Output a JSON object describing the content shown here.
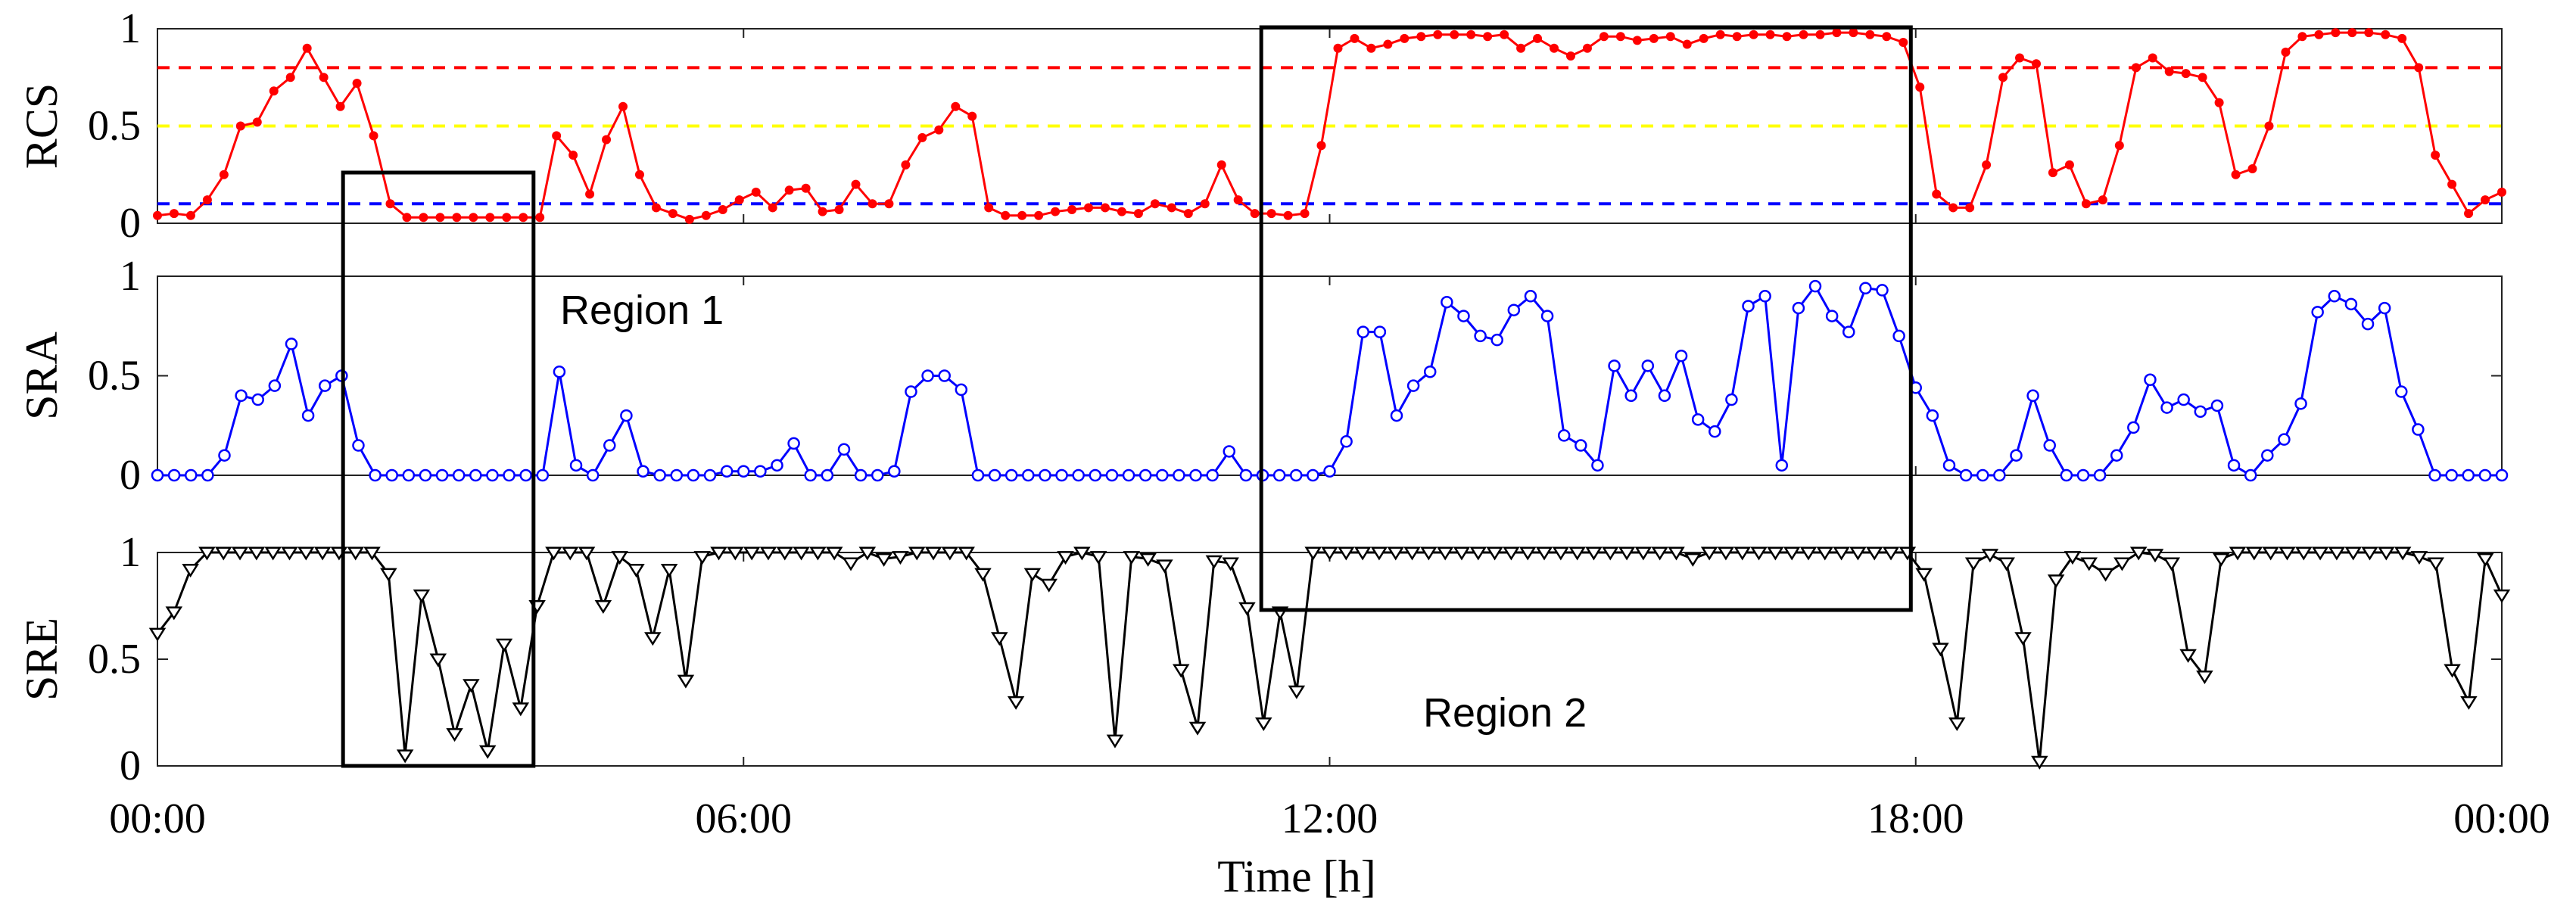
{
  "chart_data": {
    "type": "line",
    "xlabel": "Time [h]",
    "x_tick_labels": [
      "00:00",
      "06:00",
      "12:00",
      "18:00",
      "00:00"
    ],
    "x_range_hours": [
      0,
      24
    ],
    "sample_step_hours": 0.1667,
    "reference_lines": [
      {
        "value": 0.8,
        "color": "#ff0000"
      },
      {
        "value": 0.5,
        "color": "#ffff00"
      },
      {
        "value": 0.1,
        "color": "#0000ff"
      }
    ],
    "regions": [
      {
        "label": "Region 1",
        "x_start_hours": 1.9,
        "x_end_hours": 3.85
      },
      {
        "label": "Region 2",
        "x_start_hours": 11.3,
        "x_end_hours": 17.95
      }
    ],
    "panels": [
      {
        "ylabel": "RCS",
        "ylim": [
          0,
          1
        ],
        "y_ticks": [
          0,
          0.5,
          1
        ],
        "y_tick_labels": [
          "0",
          "0.5",
          "1"
        ],
        "color": "#ff0000",
        "marker": "dot",
        "values": [
          0.04,
          0.05,
          0.04,
          0.12,
          0.25,
          0.5,
          0.52,
          0.68,
          0.75,
          0.9,
          0.75,
          0.6,
          0.72,
          0.45,
          0.1,
          0.03,
          0.03,
          0.03,
          0.03,
          0.03,
          0.03,
          0.03,
          0.03,
          0.03,
          0.45,
          0.35,
          0.15,
          0.43,
          0.6,
          0.25,
          0.08,
          0.05,
          0.02,
          0.04,
          0.07,
          0.12,
          0.16,
          0.08,
          0.17,
          0.18,
          0.06,
          0.07,
          0.2,
          0.1,
          0.1,
          0.3,
          0.44,
          0.48,
          0.6,
          0.55,
          0.08,
          0.04,
          0.04,
          0.04,
          0.06,
          0.07,
          0.08,
          0.08,
          0.06,
          0.05,
          0.1,
          0.08,
          0.05,
          0.1,
          0.3,
          0.12,
          0.05,
          0.05,
          0.04,
          0.05,
          0.4,
          0.9,
          0.95,
          0.9,
          0.92,
          0.95,
          0.96,
          0.97,
          0.97,
          0.97,
          0.96,
          0.97,
          0.9,
          0.95,
          0.9,
          0.86,
          0.9,
          0.96,
          0.96,
          0.94,
          0.95,
          0.96,
          0.92,
          0.95,
          0.97,
          0.96,
          0.97,
          0.97,
          0.96,
          0.97,
          0.97,
          0.98,
          0.98,
          0.97,
          0.96,
          0.93,
          0.7,
          0.15,
          0.08,
          0.08,
          0.3,
          0.75,
          0.85,
          0.82,
          0.26,
          0.3,
          0.1,
          0.12,
          0.4,
          0.8,
          0.85,
          0.78,
          0.77,
          0.75,
          0.62,
          0.25,
          0.28,
          0.5,
          0.88,
          0.96,
          0.97,
          0.98,
          0.98,
          0.98,
          0.97,
          0.95,
          0.8,
          0.35,
          0.2,
          0.05,
          0.12,
          0.16
        ]
      },
      {
        "ylabel": "SRA",
        "ylim": [
          0,
          1
        ],
        "y_ticks": [
          0,
          0.5,
          1
        ],
        "y_tick_labels": [
          "0",
          "0.5",
          "1"
        ],
        "color": "#0000ff",
        "marker": "circle",
        "values": [
          0,
          0,
          0,
          0,
          0.1,
          0.4,
          0.38,
          0.45,
          0.66,
          0.3,
          0.45,
          0.5,
          0.15,
          0,
          0,
          0,
          0,
          0,
          0,
          0,
          0,
          0,
          0,
          0,
          0.52,
          0.05,
          0,
          0.15,
          0.3,
          0.02,
          0,
          0,
          0,
          0,
          0.02,
          0.02,
          0.02,
          0.05,
          0.16,
          0,
          0,
          0.13,
          0,
          0,
          0.02,
          0.42,
          0.5,
          0.5,
          0.43,
          0,
          0,
          0,
          0,
          0,
          0,
          0,
          0,
          0,
          0,
          0,
          0,
          0,
          0,
          0,
          0.12,
          0,
          0,
          0,
          0,
          0,
          0.02,
          0.17,
          0.72,
          0.72,
          0.3,
          0.45,
          0.52,
          0.87,
          0.8,
          0.7,
          0.68,
          0.83,
          0.9,
          0.8,
          0.2,
          0.15,
          0.05,
          0.55,
          0.4,
          0.55,
          0.4,
          0.6,
          0.28,
          0.22,
          0.38,
          0.85,
          0.9,
          0.05,
          0.84,
          0.95,
          0.8,
          0.72,
          0.94,
          0.93,
          0.7,
          0.44,
          0.3,
          0.05,
          0,
          0,
          0,
          0.1,
          0.4,
          0.15,
          0,
          0,
          0,
          0.1,
          0.24,
          0.48,
          0.34,
          0.38,
          0.32,
          0.35,
          0.05,
          0,
          0.1,
          0.18,
          0.36,
          0.82,
          0.9,
          0.86,
          0.76,
          0.84,
          0.42,
          0.23,
          0,
          0,
          0,
          0,
          0
        ]
      },
      {
        "ylabel": "SRE",
        "ylim": [
          0,
          1
        ],
        "y_ticks": [
          0,
          0.5,
          1
        ],
        "y_tick_labels": [
          "0",
          "0.5",
          "1"
        ],
        "color": "#000000",
        "marker": "triangle-down",
        "values": [
          0.62,
          0.72,
          0.92,
          1,
          1,
          1,
          1,
          1,
          1,
          1,
          1,
          1,
          1,
          1,
          0.9,
          0.05,
          0.8,
          0.5,
          0.15,
          0.38,
          0.07,
          0.57,
          0.27,
          0.75,
          1,
          1,
          1,
          0.75,
          0.98,
          0.92,
          0.6,
          0.92,
          0.4,
          0.98,
          1,
          1,
          1,
          1,
          1,
          1,
          1,
          1,
          0.95,
          1,
          0.97,
          0.98,
          1,
          1,
          1,
          1,
          0.9,
          0.6,
          0.3,
          0.9,
          0.85,
          0.98,
          1,
          0.98,
          0.12,
          0.98,
          0.97,
          0.94,
          0.45,
          0.18,
          0.96,
          0.95,
          0.74,
          0.2,
          0.72,
          0.35,
          1,
          1,
          1,
          1,
          1,
          1,
          1,
          1,
          1,
          1,
          1,
          1,
          1,
          1,
          1,
          1,
          1,
          1,
          1,
          1,
          1,
          1,
          1,
          0.97,
          1,
          1,
          1,
          1,
          1,
          1,
          1,
          1,
          1,
          1,
          1,
          1,
          1,
          0.9,
          0.55,
          0.2,
          0.95,
          0.99,
          0.95,
          0.6,
          0.02,
          0.87,
          0.98,
          0.95,
          0.9,
          0.95,
          1,
          0.99,
          0.95,
          0.52,
          0.42,
          0.97,
          1,
          1,
          1,
          1,
          1,
          1,
          1,
          1,
          1,
          1,
          1,
          0.98,
          0.95,
          0.45,
          0.3,
          0.97,
          0.8
        ]
      }
    ]
  }
}
